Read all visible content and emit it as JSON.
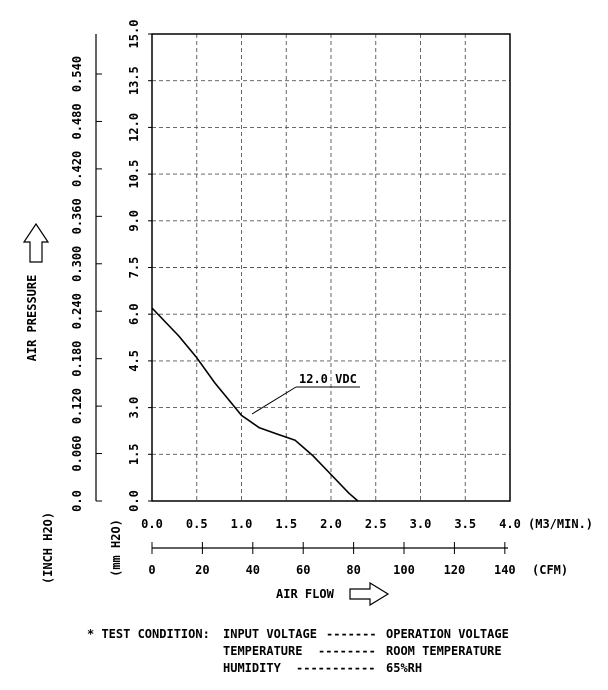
{
  "chart_data": {
    "type": "line",
    "x_axis": {
      "unit": "(M3/MIN.)",
      "ticks": [
        "0.0",
        "0.5",
        "1.0",
        "1.5",
        "2.0",
        "2.5",
        "3.0",
        "3.5",
        "4.0"
      ],
      "range": [
        0,
        4.0
      ]
    },
    "x2_axis": {
      "unit": "(CFM)",
      "ticks": [
        "0",
        "20",
        "40",
        "60",
        "80",
        "100",
        "120",
        "140"
      ],
      "range": [
        0,
        141.26
      ]
    },
    "y_axis": {
      "unit": "(mm H2O)",
      "ticks": [
        "0.0",
        "1.5",
        "3.0",
        "4.5",
        "6.0",
        "7.5",
        "9.0",
        "10.5",
        "12.0",
        "13.5",
        "15.0"
      ],
      "range": [
        0,
        15
      ]
    },
    "y2_axis": {
      "unit": "(INCH H2O)",
      "ticks": [
        "0.0",
        "0.060",
        "0.120",
        "0.180",
        "0.240",
        "0.300",
        "0.360",
        "0.420",
        "0.480",
        "0.540"
      ],
      "range": [
        0,
        0.5906
      ]
    },
    "ylabel": "AIR PRESSURE",
    "xlabel": "AIR FLOW",
    "grid": true,
    "series": [
      {
        "name": "12.0 VDC",
        "x": [
          0.0,
          0.3,
          0.5,
          0.7,
          0.9,
          1.0,
          1.2,
          1.4,
          1.6,
          1.8,
          2.0,
          2.2,
          2.3
        ],
        "y": [
          6.2,
          5.3,
          4.6,
          3.8,
          3.1,
          2.75,
          2.35,
          2.15,
          1.95,
          1.45,
          0.85,
          0.25,
          0.0
        ]
      }
    ]
  },
  "test_condition": {
    "prefix": "* TEST CONDITION:",
    "lines": [
      {
        "label": "INPUT VOLTAGE",
        "dashes": "-------",
        "value": "OPERATION VOLTAGE"
      },
      {
        "label": "TEMPERATURE",
        "dashes": "--------",
        "value": "ROOM TEMPERATURE"
      },
      {
        "label": "HUMIDITY",
        "dashes": "-----------",
        "value": "65%RH"
      }
    ]
  }
}
